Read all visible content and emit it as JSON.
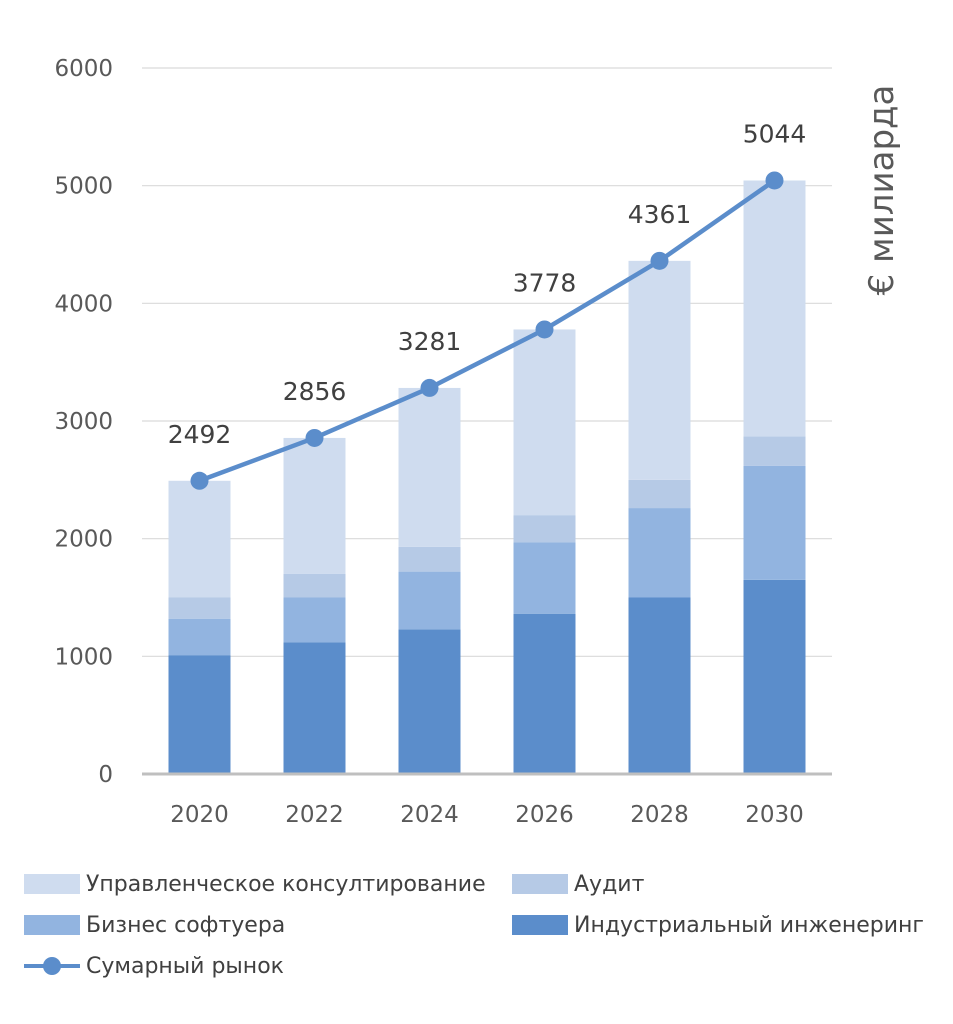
{
  "chart_data": {
    "type": "bar",
    "stacked": true,
    "categories": [
      "2020",
      "2022",
      "2024",
      "2026",
      "2028",
      "2030"
    ],
    "series": [
      {
        "name": "Индустриальный инженеринг",
        "values": [
          1010,
          1120,
          1230,
          1360,
          1500,
          1650
        ],
        "color": "#5B8DCB"
      },
      {
        "name": "Бизнес софтуера",
        "values": [
          310,
          380,
          490,
          610,
          760,
          970
        ],
        "color": "#92B4E0"
      },
      {
        "name": "Аудит",
        "values": [
          180,
          200,
          210,
          230,
          240,
          250
        ],
        "color": "#B6CAE6"
      },
      {
        "name": "Управленческое консултирование",
        "values": [
          992,
          1156,
          1351,
          1578,
          1861,
          2174
        ],
        "color": "#CFDCEF"
      }
    ],
    "line": {
      "name": "Сумарный рынок",
      "values": [
        2492,
        2856,
        3281,
        3778,
        4361,
        5044
      ],
      "color": "#5B8DCB"
    },
    "data_labels": [
      "2492",
      "2856",
      "3281",
      "3778",
      "4361",
      "5044"
    ],
    "ylabel": "€ милиарда",
    "xlabel": "",
    "title": "",
    "ylim": [
      0,
      6000
    ],
    "yticks": [
      0,
      1000,
      2000,
      3000,
      4000,
      5000,
      6000
    ],
    "grid": true,
    "legend_position": "bottom"
  },
  "legend": {
    "items": [
      {
        "label": "Управленческое консултирование",
        "color": "#CFDCEF"
      },
      {
        "label": "Аудит",
        "color": "#B6CAE6"
      },
      {
        "label": "Бизнес софтуера",
        "color": "#92B4E0"
      },
      {
        "label": "Индустриальный инженеринг",
        "color": "#5B8DCB"
      },
      {
        "label": "Сумарный рынок",
        "color": "#5B8DCB"
      }
    ]
  }
}
